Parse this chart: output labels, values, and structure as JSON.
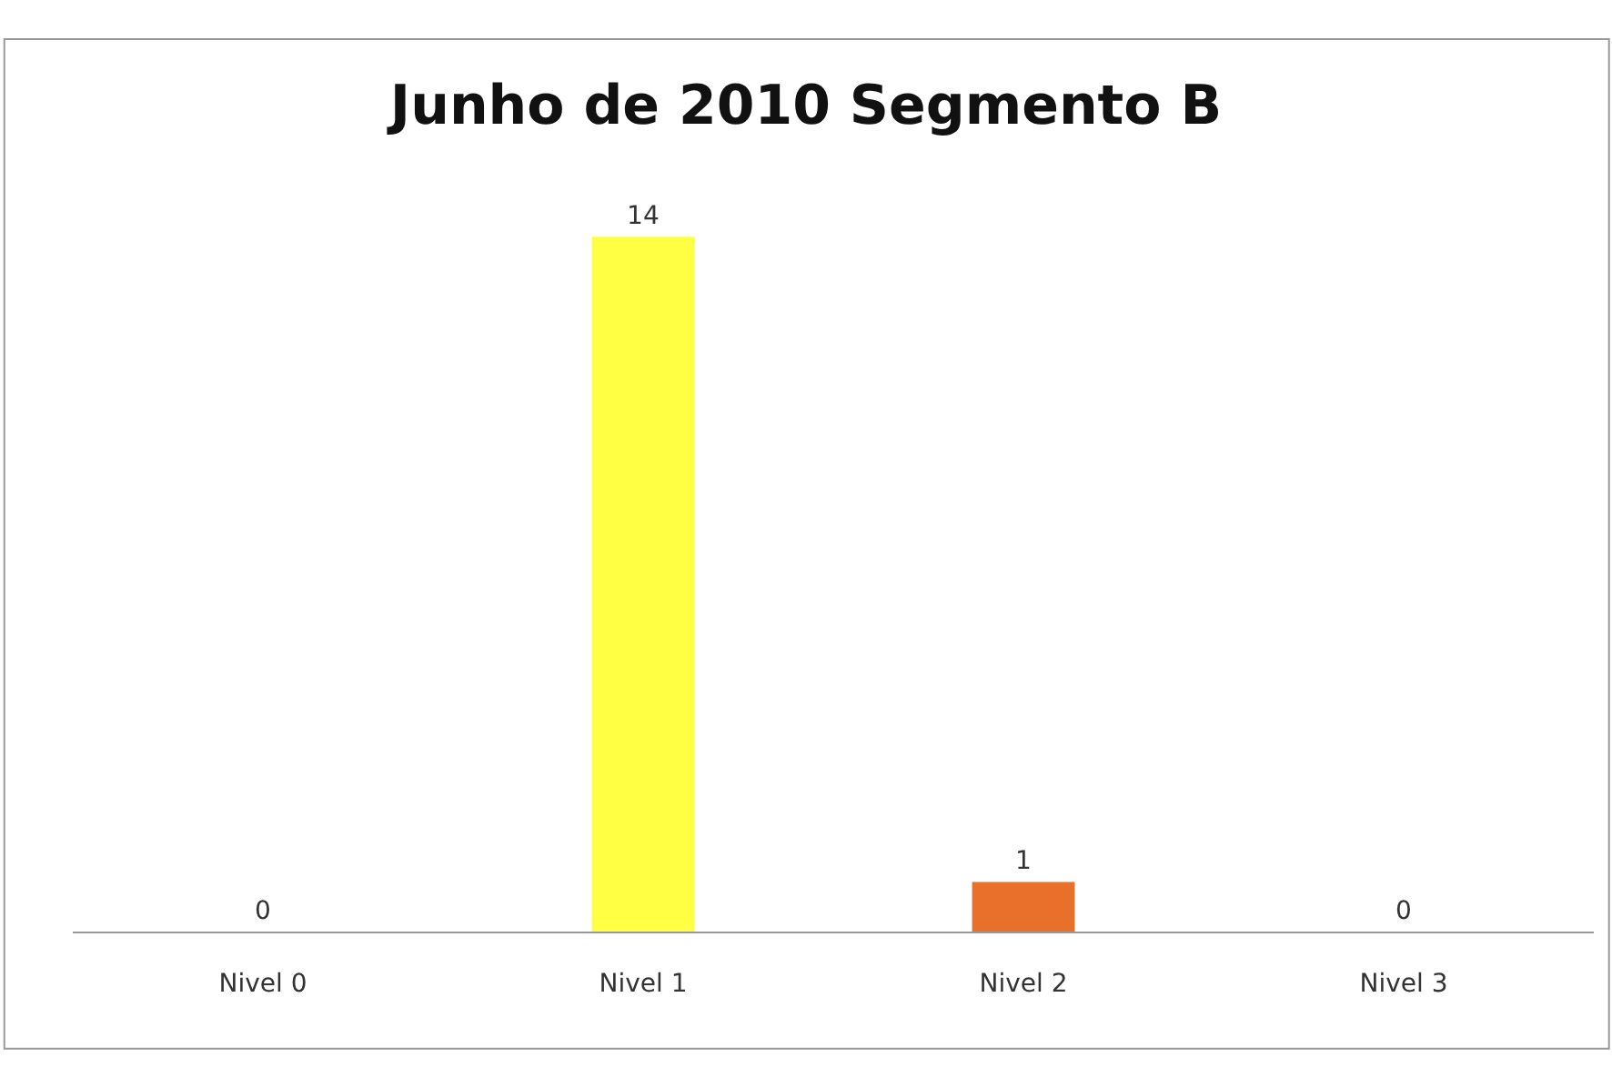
{
  "chart_data": {
    "type": "bar",
    "title": "Junho de 2010 Segmento B",
    "categories": [
      "Nivel 0",
      "Nivel 1",
      "Nivel 2",
      "Nivel 3"
    ],
    "values": [
      0,
      14,
      1,
      0
    ],
    "colors": [
      "#a0a0a0",
      "#ffff44",
      "#e8702a",
      "#a0a0a0"
    ],
    "data_labels": true,
    "legend": false
  }
}
